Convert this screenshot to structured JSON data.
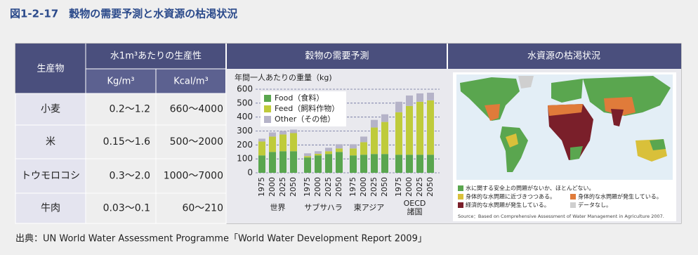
{
  "header": {
    "title": "図1-2-17　穀物の需要予測と水資源の枯渇状況"
  },
  "table": {
    "headers": [
      "生産物",
      "水1m³あたりの生産性",
      "穀物の需要予測",
      "水資源の枯渇状況"
    ],
    "subheaders": [
      "Kg/m³",
      "Kcal/m³"
    ],
    "rows": [
      [
        "小麦",
        "0.2～1.2",
        "660～4000"
      ],
      [
        "米",
        "0.15～1.6",
        "500～2000"
      ],
      [
        "トウモロコシ",
        "0.3～2.0",
        "1000～7000"
      ],
      [
        "牛肉",
        "0.03～0.1",
        "60～210"
      ]
    ]
  },
  "chart_data": {
    "type": "stacked_bar",
    "y_label": "年間一人あたりの重量（kg)",
    "categories": [
      "1975",
      "2000",
      "2025",
      "2050",
      "1975",
      "2000",
      "2025",
      "2050",
      "1975",
      "2000",
      "2025",
      "2050",
      "1975",
      "2000",
      "2025",
      "2050"
    ],
    "groups": [
      [
        "世界"
      ],
      [
        "サブサハラ"
      ],
      [
        "東アジア"
      ],
      [
        "OECD",
        "諸国"
      ]
    ],
    "series": [
      {
        "name": "Food（食料）",
        "color": "#5aa64f",
        "values": [
          125,
          150,
          155,
          155,
          110,
          125,
          135,
          150,
          125,
          130,
          135,
          135,
          130,
          130,
          130,
          130
        ]
      },
      {
        "name": "Feed（飼料作物）",
        "color": "#bfcb3b",
        "values": [
          100,
          110,
          120,
          130,
          10,
          12,
          20,
          25,
          50,
          90,
          190,
          230,
          305,
          350,
          380,
          390
        ]
      },
      {
        "name": "Other（その他）",
        "color": "#b5b3c8",
        "values": [
          20,
          30,
          25,
          25,
          20,
          18,
          25,
          30,
          30,
          40,
          55,
          55,
          75,
          75,
          60,
          55
        ]
      }
    ],
    "ylim": [
      0,
      600
    ],
    "yticks": [
      0,
      100,
      200,
      300,
      400,
      500,
      600
    ],
    "grid": true
  },
  "map": {
    "legend": [
      "水に関する安全上の問題がないか、ほとんどない。",
      "身体的な水問題に近づきつつある。",
      "身体的な水問題が発生している。",
      "経済的な水問題が発生している。",
      "データなし。"
    ],
    "source": "Source：Based on Comprehensive Assessment of Water Management in Agriculture 2007."
  },
  "source": "出典：UN World Water Assessment Programme「World Water Development Report 2009」"
}
